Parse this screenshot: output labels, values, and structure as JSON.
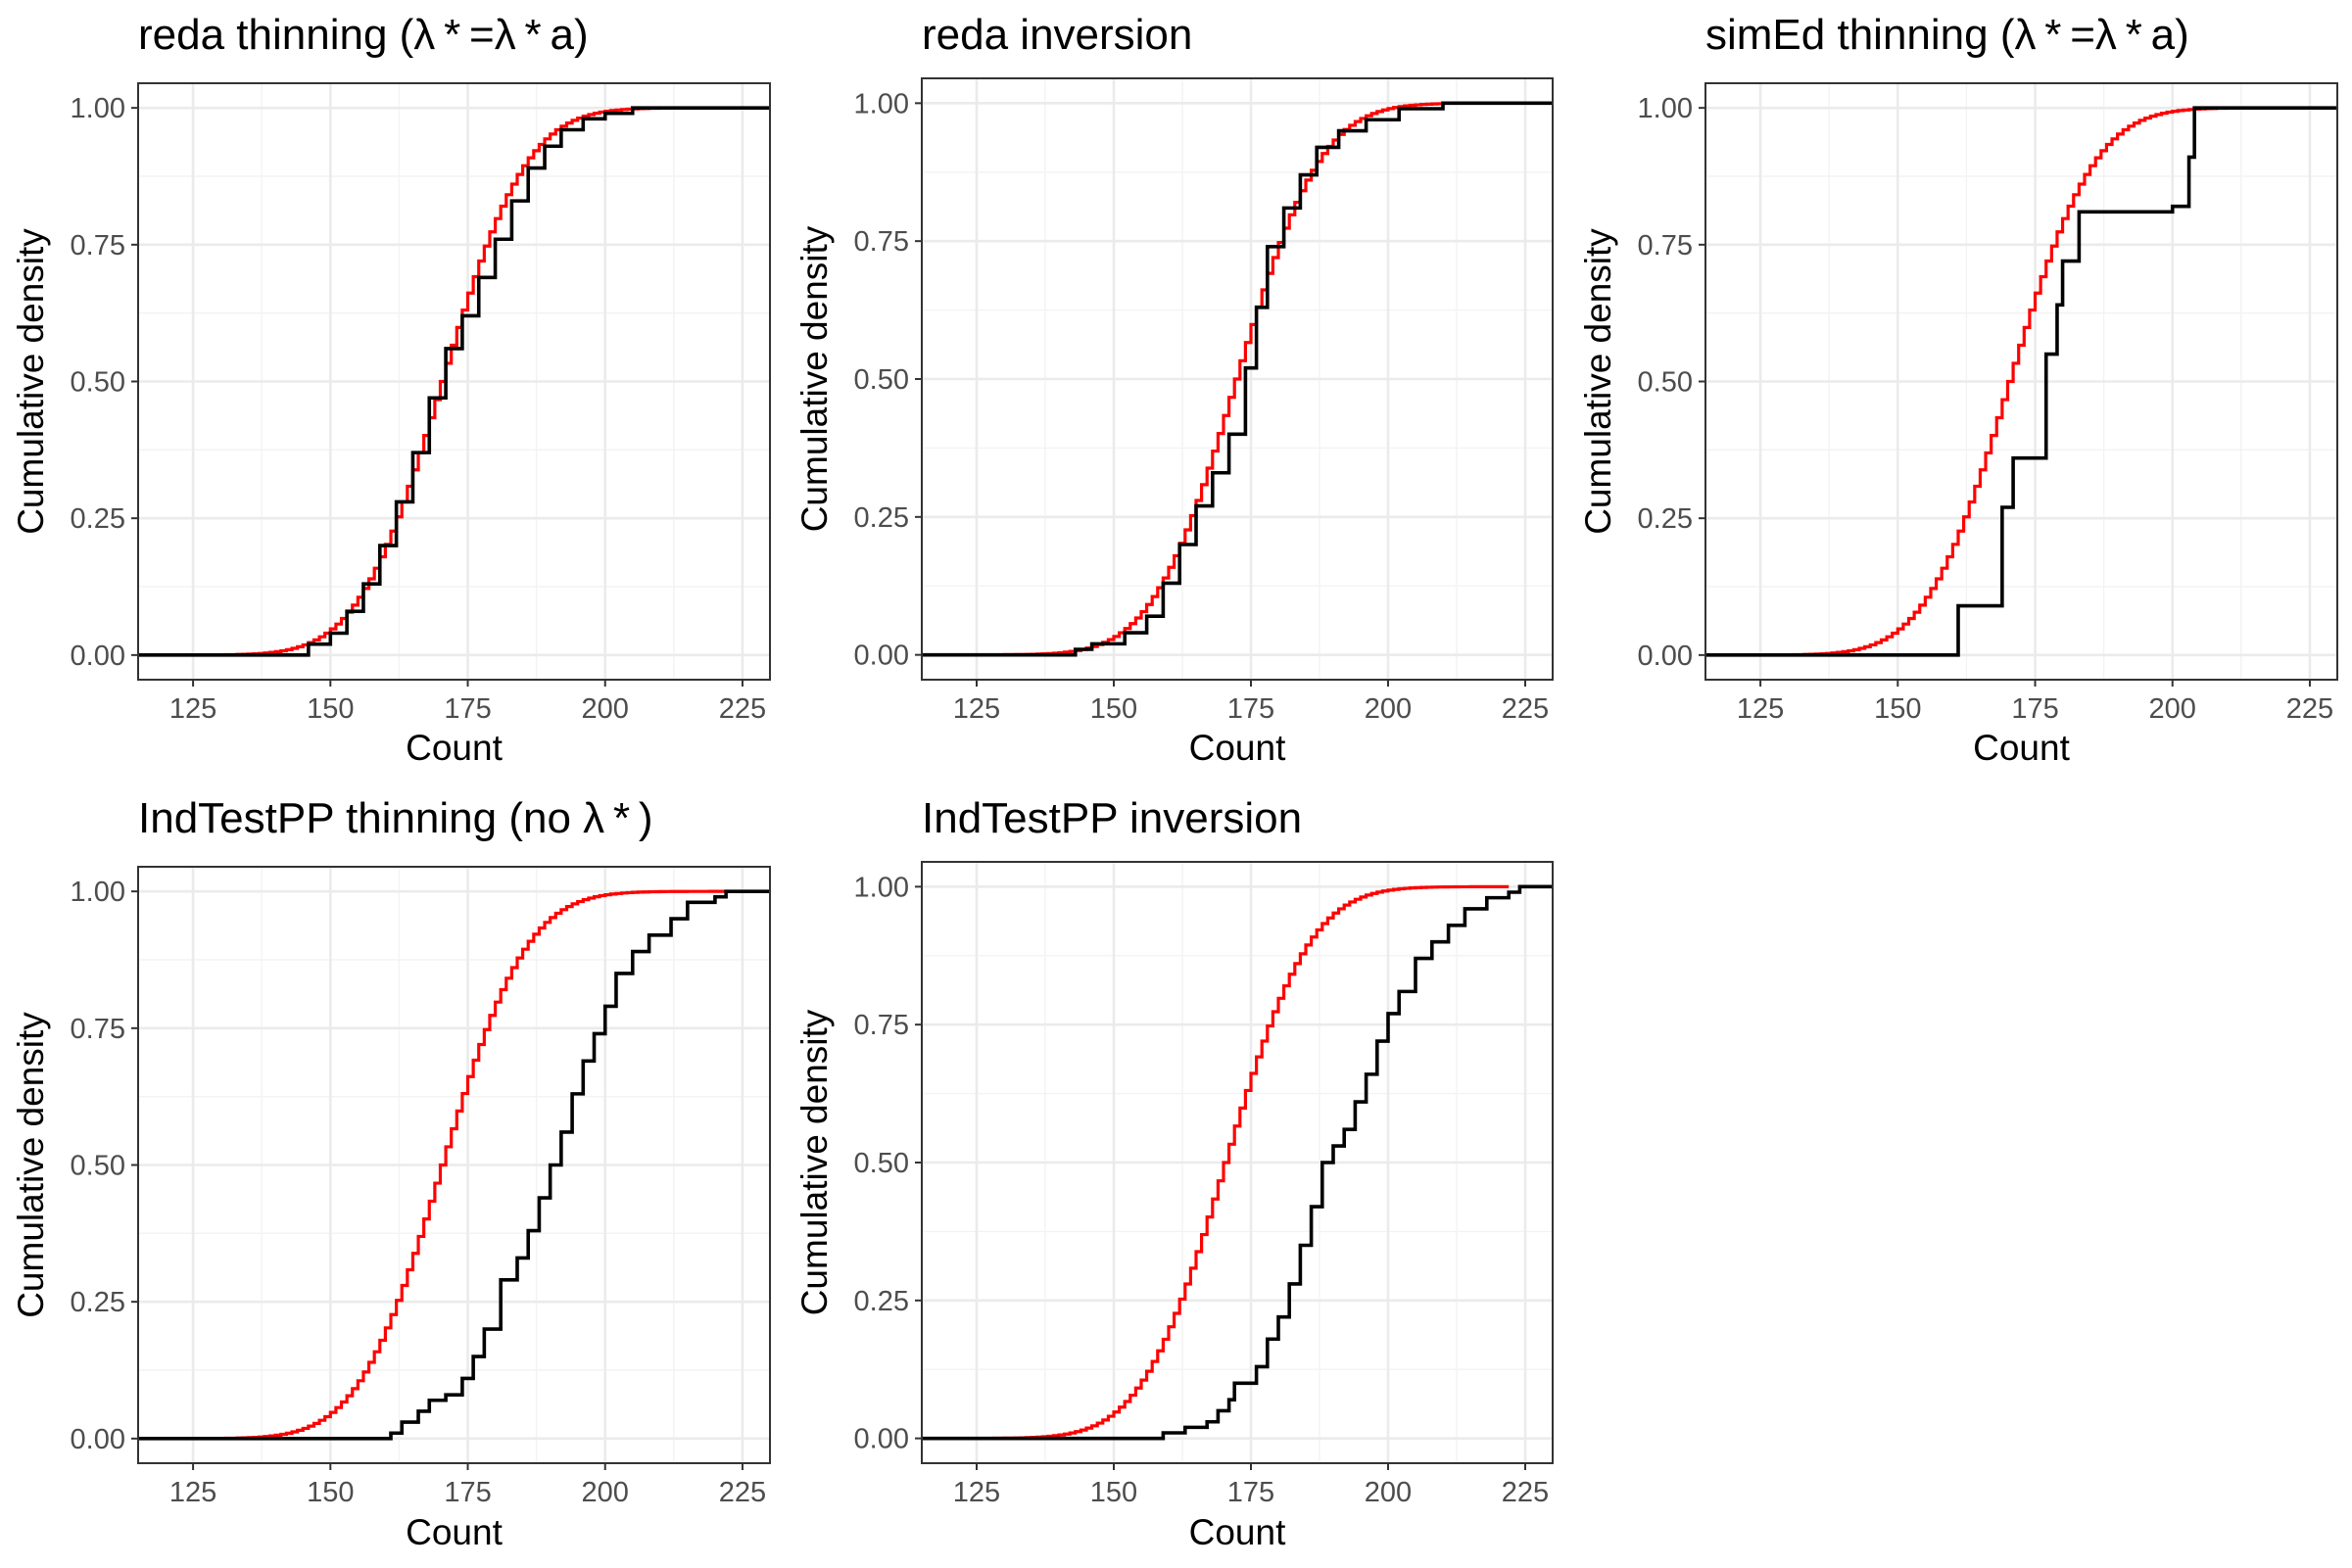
{
  "chart_data": [
    {
      "type": "line",
      "title": "reda thinning (λ * =λ * a)",
      "xlabel": "Count",
      "ylabel": "Cumulative density",
      "xlim": [
        115,
        230
      ],
      "ylim": [
        0,
        1
      ],
      "x_ticks": [
        125,
        150,
        175,
        200,
        225
      ],
      "y_ticks": [
        0,
        0.25,
        0.5,
        0.75,
        1
      ],
      "x_tick_labels": [
        "125",
        "150",
        "175",
        "200",
        "225"
      ],
      "y_tick_labels": [
        "0.00",
        "0.25",
        "0.50",
        "0.75",
        "1.00"
      ],
      "grid": true,
      "legend": "none",
      "series": [
        {
          "role": "theoretical",
          "color": "#ff0000",
          "cdf": {
            "mean": 170,
            "sd": 12
          },
          "x_range": [
            115,
            210
          ]
        },
        {
          "role": "empirical",
          "color": "#000000",
          "step_points": [
            [
              115,
              0
            ],
            [
              146,
              0
            ],
            [
              146,
              0.02
            ],
            [
              150,
              0.04
            ],
            [
              153,
              0.08
            ],
            [
              156,
              0.13
            ],
            [
              159,
              0.2
            ],
            [
              162,
              0.28
            ],
            [
              165,
              0.37
            ],
            [
              168,
              0.47
            ],
            [
              171,
              0.56
            ],
            [
              174,
              0.62
            ],
            [
              177,
              0.69
            ],
            [
              180,
              0.76
            ],
            [
              183,
              0.83
            ],
            [
              186,
              0.89
            ],
            [
              189,
              0.93
            ],
            [
              192,
              0.96
            ],
            [
              196,
              0.98
            ],
            [
              200,
              0.99
            ],
            [
              205,
              1.0
            ],
            [
              230,
              1.0
            ]
          ]
        }
      ]
    },
    {
      "type": "line",
      "title": "reda inversion",
      "xlabel": "Count",
      "ylabel": "Cumulative density",
      "xlim": [
        115,
        230
      ],
      "ylim": [
        0,
        1
      ],
      "x_ticks": [
        125,
        150,
        175,
        200,
        225
      ],
      "y_ticks": [
        0,
        0.25,
        0.5,
        0.75,
        1
      ],
      "x_tick_labels": [
        "125",
        "150",
        "175",
        "200",
        "225"
      ],
      "y_tick_labels": [
        "0.00",
        "0.25",
        "0.50",
        "0.75",
        "1.00"
      ],
      "grid": true,
      "legend": "none",
      "series": [
        {
          "role": "theoretical",
          "color": "#ff0000",
          "cdf": {
            "mean": 172,
            "sd": 12
          },
          "x_range": [
            115,
            210
          ]
        },
        {
          "role": "empirical",
          "color": "#000000",
          "step_points": [
            [
              115,
              0
            ],
            [
              143,
              0
            ],
            [
              143,
              0.01
            ],
            [
              146,
              0.02
            ],
            [
              152,
              0.04
            ],
            [
              156,
              0.07
            ],
            [
              159,
              0.13
            ],
            [
              162,
              0.2
            ],
            [
              165,
              0.27
            ],
            [
              168,
              0.33
            ],
            [
              171,
              0.4
            ],
            [
              174,
              0.52
            ],
            [
              176,
              0.63
            ],
            [
              178,
              0.74
            ],
            [
              181,
              0.81
            ],
            [
              184,
              0.87
            ],
            [
              187,
              0.92
            ],
            [
              191,
              0.95
            ],
            [
              196,
              0.97
            ],
            [
              202,
              0.99
            ],
            [
              210,
              1.0
            ],
            [
              230,
              1.0
            ]
          ]
        }
      ]
    },
    {
      "type": "line",
      "title": "simEd thinning (λ * =λ * a)",
      "xlabel": "Count",
      "ylabel": "Cumulative density",
      "xlim": [
        115,
        230
      ],
      "ylim": [
        0,
        1
      ],
      "x_ticks": [
        125,
        150,
        175,
        200,
        225
      ],
      "y_ticks": [
        0,
        0.25,
        0.5,
        0.75,
        1
      ],
      "x_tick_labels": [
        "125",
        "150",
        "175",
        "200",
        "225"
      ],
      "y_tick_labels": [
        "0.00",
        "0.25",
        "0.50",
        "0.75",
        "1.00"
      ],
      "grid": true,
      "legend": "none",
      "series": [
        {
          "role": "theoretical",
          "color": "#ff0000",
          "cdf": {
            "mean": 170,
            "sd": 12
          },
          "x_range": [
            115,
            230
          ]
        },
        {
          "role": "empirical",
          "color": "#000000",
          "step_points": [
            [
              115,
              0
            ],
            [
              161,
              0
            ],
            [
              161,
              0.09
            ],
            [
              169,
              0.27
            ],
            [
              171,
              0.36
            ],
            [
              177,
              0.55
            ],
            [
              179,
              0.64
            ],
            [
              180,
              0.72
            ],
            [
              183,
              0.81
            ],
            [
              200,
              0.82
            ],
            [
              203,
              0.91
            ],
            [
              204,
              1.0
            ],
            [
              230,
              1.0
            ]
          ]
        }
      ]
    },
    {
      "type": "line",
      "title": "IndTestPP thinning (no λ * )",
      "xlabel": "Count",
      "ylabel": "Cumulative density",
      "xlim": [
        115,
        230
      ],
      "ylim": [
        0,
        1
      ],
      "x_ticks": [
        125,
        150,
        175,
        200,
        225
      ],
      "y_ticks": [
        0,
        0.25,
        0.5,
        0.75,
        1
      ],
      "x_tick_labels": [
        "125",
        "150",
        "175",
        "200",
        "225"
      ],
      "y_tick_labels": [
        "0.00",
        "0.25",
        "0.50",
        "0.75",
        "1.00"
      ],
      "grid": true,
      "legend": "none",
      "series": [
        {
          "role": "theoretical",
          "color": "#ff0000",
          "cdf": {
            "mean": 170,
            "sd": 12
          },
          "x_range": [
            115,
            222
          ]
        },
        {
          "role": "empirical",
          "color": "#000000",
          "step_points": [
            [
              115,
              0
            ],
            [
              160,
              0
            ],
            [
              161,
              0.01
            ],
            [
              163,
              0.03
            ],
            [
              166,
              0.05
            ],
            [
              168,
              0.07
            ],
            [
              171,
              0.08
            ],
            [
              174,
              0.11
            ],
            [
              176,
              0.15
            ],
            [
              178,
              0.2
            ],
            [
              181,
              0.29
            ],
            [
              184,
              0.33
            ],
            [
              186,
              0.38
            ],
            [
              188,
              0.44
            ],
            [
              190,
              0.5
            ],
            [
              192,
              0.56
            ],
            [
              194,
              0.63
            ],
            [
              196,
              0.69
            ],
            [
              198,
              0.74
            ],
            [
              200,
              0.79
            ],
            [
              202,
              0.85
            ],
            [
              205,
              0.89
            ],
            [
              208,
              0.92
            ],
            [
              212,
              0.95
            ],
            [
              215,
              0.98
            ],
            [
              220,
              0.99
            ],
            [
              222,
              1.0
            ],
            [
              230,
              1.0
            ]
          ]
        }
      ]
    },
    {
      "type": "line",
      "title": "IndTestPP inversion",
      "xlabel": "Count",
      "ylabel": "Cumulative density",
      "xlim": [
        115,
        230
      ],
      "ylim": [
        0,
        1
      ],
      "x_ticks": [
        125,
        150,
        175,
        200,
        225
      ],
      "y_ticks": [
        0,
        0.25,
        0.5,
        0.75,
        1
      ],
      "x_tick_labels": [
        "125",
        "150",
        "175",
        "200",
        "225"
      ],
      "y_tick_labels": [
        "0.00",
        "0.25",
        "0.50",
        "0.75",
        "1.00"
      ],
      "grid": true,
      "legend": "none",
      "series": [
        {
          "role": "theoretical",
          "color": "#ff0000",
          "cdf": {
            "mean": 170,
            "sd": 12
          },
          "x_range": [
            115,
            222
          ]
        },
        {
          "role": "empirical",
          "color": "#000000",
          "step_points": [
            [
              115,
              0
            ],
            [
              158,
              0
            ],
            [
              159,
              0.01
            ],
            [
              163,
              0.02
            ],
            [
              167,
              0.03
            ],
            [
              169,
              0.05
            ],
            [
              171,
              0.07
            ],
            [
              172,
              0.1
            ],
            [
              176,
              0.13
            ],
            [
              178,
              0.18
            ],
            [
              180,
              0.22
            ],
            [
              182,
              0.28
            ],
            [
              184,
              0.35
            ],
            [
              186,
              0.42
            ],
            [
              188,
              0.5
            ],
            [
              190,
              0.53
            ],
            [
              192,
              0.56
            ],
            [
              194,
              0.61
            ],
            [
              196,
              0.66
            ],
            [
              198,
              0.72
            ],
            [
              200,
              0.77
            ],
            [
              202,
              0.81
            ],
            [
              205,
              0.87
            ],
            [
              208,
              0.9
            ],
            [
              211,
              0.93
            ],
            [
              214,
              0.96
            ],
            [
              218,
              0.98
            ],
            [
              222,
              0.99
            ],
            [
              224,
              1.0
            ],
            [
              230,
              1.0
            ]
          ]
        }
      ]
    }
  ]
}
